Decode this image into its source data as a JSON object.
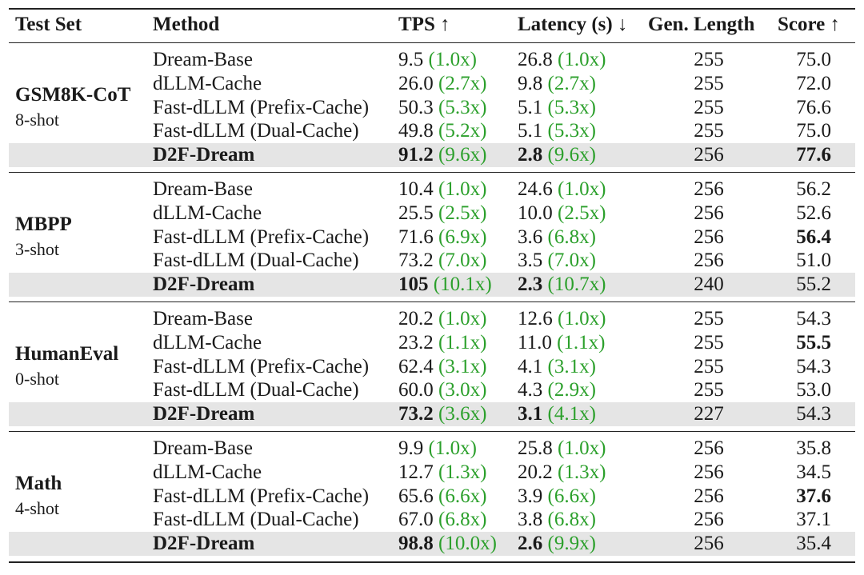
{
  "header": {
    "test_set": "Test Set",
    "method": "Method",
    "tps": "TPS ↑",
    "latency": "Latency (s) ↓",
    "gen_length": "Gen. Length",
    "score": "Score ↑"
  },
  "groups": [
    {
      "name": "GSM8K-CoT",
      "shots": "8-shot",
      "rows": [
        {
          "method": "Dream-Base",
          "tps": "9.5",
          "tps_speedup": "(1.0x)",
          "latency": "26.8",
          "latency_speedup": "(1.0x)",
          "gen_length": "255",
          "score": "75.0",
          "highlight": false,
          "score_bold": false
        },
        {
          "method": "dLLM-Cache",
          "tps": "26.0",
          "tps_speedup": "(2.7x)",
          "latency": "9.8",
          "latency_speedup": "(2.7x)",
          "gen_length": "255",
          "score": "72.0",
          "highlight": false,
          "score_bold": false
        },
        {
          "method": "Fast-dLLM (Prefix-Cache)",
          "tps": "50.3",
          "tps_speedup": "(5.3x)",
          "latency": "5.1",
          "latency_speedup": "(5.3x)",
          "gen_length": "255",
          "score": "76.6",
          "highlight": false,
          "score_bold": false
        },
        {
          "method": "Fast-dLLM (Dual-Cache)",
          "tps": "49.8",
          "tps_speedup": "(5.2x)",
          "latency": "5.1",
          "latency_speedup": "(5.3x)",
          "gen_length": "255",
          "score": "75.0",
          "highlight": false,
          "score_bold": false
        },
        {
          "method": "D2F-Dream",
          "tps": "91.2",
          "tps_speedup": "(9.6x)",
          "latency": "2.8",
          "latency_speedup": "(9.6x)",
          "gen_length": "256",
          "score": "77.6",
          "highlight": true,
          "score_bold": true
        }
      ]
    },
    {
      "name": "MBPP",
      "shots": "3-shot",
      "rows": [
        {
          "method": "Dream-Base",
          "tps": "10.4",
          "tps_speedup": "(1.0x)",
          "latency": "24.6",
          "latency_speedup": "(1.0x)",
          "gen_length": "256",
          "score": "56.2",
          "highlight": false,
          "score_bold": false
        },
        {
          "method": "dLLM-Cache",
          "tps": "25.5",
          "tps_speedup": "(2.5x)",
          "latency": "10.0",
          "latency_speedup": "(2.5x)",
          "gen_length": "256",
          "score": "52.6",
          "highlight": false,
          "score_bold": false
        },
        {
          "method": "Fast-dLLM (Prefix-Cache)",
          "tps": "71.6",
          "tps_speedup": "(6.9x)",
          "latency": "3.6",
          "latency_speedup": "(6.8x)",
          "gen_length": "256",
          "score": "56.4",
          "highlight": false,
          "score_bold": true
        },
        {
          "method": "Fast-dLLM (Dual-Cache)",
          "tps": "73.2",
          "tps_speedup": "(7.0x)",
          "latency": "3.5",
          "latency_speedup": "(7.0x)",
          "gen_length": "256",
          "score": "51.0",
          "highlight": false,
          "score_bold": false
        },
        {
          "method": "D2F-Dream",
          "tps": "105",
          "tps_speedup": "(10.1x)",
          "latency": "2.3",
          "latency_speedup": "(10.7x)",
          "gen_length": "240",
          "score": "55.2",
          "highlight": true,
          "score_bold": false
        }
      ]
    },
    {
      "name": "HumanEval",
      "shots": "0-shot",
      "rows": [
        {
          "method": "Dream-Base",
          "tps": "20.2",
          "tps_speedup": "(1.0x)",
          "latency": "12.6",
          "latency_speedup": "(1.0x)",
          "gen_length": "255",
          "score": "54.3",
          "highlight": false,
          "score_bold": false
        },
        {
          "method": "dLLM-Cache",
          "tps": "23.2",
          "tps_speedup": "(1.1x)",
          "latency": "11.0",
          "latency_speedup": "(1.1x)",
          "gen_length": "255",
          "score": "55.5",
          "highlight": false,
          "score_bold": true
        },
        {
          "method": "Fast-dLLM (Prefix-Cache)",
          "tps": "62.4",
          "tps_speedup": "(3.1x)",
          "latency": "4.1",
          "latency_speedup": "(3.1x)",
          "gen_length": "255",
          "score": "54.3",
          "highlight": false,
          "score_bold": false
        },
        {
          "method": "Fast-dLLM (Dual-Cache)",
          "tps": "60.0",
          "tps_speedup": "(3.0x)",
          "latency": "4.3",
          "latency_speedup": "(2.9x)",
          "gen_length": "255",
          "score": "53.0",
          "highlight": false,
          "score_bold": false
        },
        {
          "method": "D2F-Dream",
          "tps": "73.2",
          "tps_speedup": "(3.6x)",
          "latency": "3.1",
          "latency_speedup": "(4.1x)",
          "gen_length": "227",
          "score": "54.3",
          "highlight": true,
          "score_bold": false
        }
      ]
    },
    {
      "name": "Math",
      "shots": "4-shot",
      "rows": [
        {
          "method": "Dream-Base",
          "tps": "9.9",
          "tps_speedup": "(1.0x)",
          "latency": "25.8",
          "latency_speedup": "(1.0x)",
          "gen_length": "256",
          "score": "35.8",
          "highlight": false,
          "score_bold": false
        },
        {
          "method": "dLLM-Cache",
          "tps": "12.7",
          "tps_speedup": "(1.3x)",
          "latency": "20.2",
          "latency_speedup": "(1.3x)",
          "gen_length": "256",
          "score": "34.5",
          "highlight": false,
          "score_bold": false
        },
        {
          "method": "Fast-dLLM (Prefix-Cache)",
          "tps": "65.6",
          "tps_speedup": "(6.6x)",
          "latency": "3.9",
          "latency_speedup": "(6.6x)",
          "gen_length": "256",
          "score": "37.6",
          "highlight": false,
          "score_bold": true
        },
        {
          "method": "Fast-dLLM (Dual-Cache)",
          "tps": "67.0",
          "tps_speedup": "(6.8x)",
          "latency": "3.8",
          "latency_speedup": "(6.8x)",
          "gen_length": "256",
          "score": "37.1",
          "highlight": false,
          "score_bold": false
        },
        {
          "method": "D2F-Dream",
          "tps": "98.8",
          "tps_speedup": "(10.0x)",
          "latency": "2.6",
          "latency_speedup": "(9.9x)",
          "gen_length": "256",
          "score": "35.4",
          "highlight": true,
          "score_bold": false
        }
      ]
    }
  ],
  "colors": {
    "speedup_text": "#2ca02c",
    "highlight_row": "#e5e5e5",
    "rule": "#222222"
  }
}
